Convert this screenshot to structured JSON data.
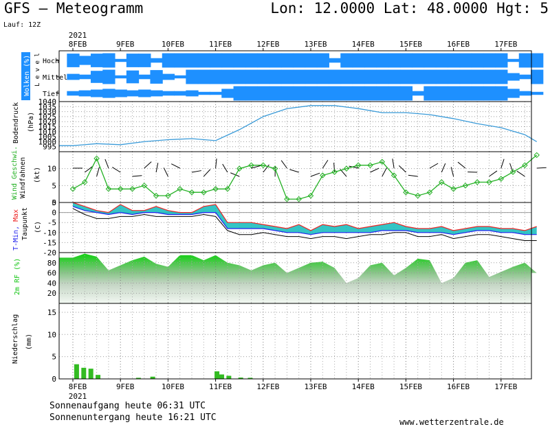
{
  "header": {
    "title": "GFS – Meteogramm",
    "location": "Lon: 12.0000 Lat: 48.0000 Hgt: 5",
    "run": "Lauf: 12Z"
  },
  "year_label": "2021",
  "date_labels": [
    "8FEB",
    "9FEB",
    "10FEB",
    "11FEB",
    "12FEB",
    "13FEB",
    "14FEB",
    "15FEB",
    "16FEB",
    "17FEB"
  ],
  "footer": {
    "sunrise": "Sonnenaufgang heute 06:31 UTC",
    "sunset": "Sonnenuntergang heute 16:21 UTC",
    "website": "www.wetterzentrale.de"
  },
  "colors": {
    "cloud": "#1e90ff",
    "pressure": "#3a9bd9",
    "wind": "#22b022",
    "rh": "#11c411",
    "precip": "#33bb22",
    "tmin": "#2222ee",
    "tmax": "#ee2222",
    "dewpoint": "#000000",
    "temp_fill": "#11bbbb"
  },
  "chart_data": [
    {
      "type": "heatmap",
      "name": "clouds",
      "ylabel_colored": "Wolken (%)",
      "ylabel": "L e v e l",
      "levels": [
        "Hoch",
        "Mittel",
        "Tief"
      ],
      "x_days": [
        0,
        0.25,
        0.5,
        0.75,
        1,
        1.25,
        1.5,
        1.75,
        2,
        2.25,
        2.5,
        2.75,
        3,
        3.25,
        3.5,
        3.75,
        4,
        4.25,
        4.5,
        4.75,
        5,
        5.25,
        5.5,
        5.75,
        6,
        6.25,
        6.5,
        6.75,
        7,
        7.25,
        7.5,
        7.75,
        8,
        8.25,
        8.5,
        8.75,
        9,
        9.25,
        9.5,
        9.75
      ],
      "hoch": [
        90,
        60,
        90,
        95,
        20,
        90,
        90,
        30,
        95,
        95,
        95,
        95,
        95,
        95,
        95,
        95,
        95,
        95,
        95,
        95,
        95,
        95,
        30,
        95,
        95,
        95,
        95,
        95,
        95,
        95,
        95,
        95,
        95,
        95,
        95,
        95,
        95,
        20,
        95,
        95
      ],
      "mittel": [
        40,
        30,
        80,
        95,
        20,
        85,
        30,
        90,
        40,
        20,
        95,
        95,
        95,
        95,
        95,
        95,
        95,
        95,
        95,
        95,
        95,
        95,
        95,
        95,
        95,
        95,
        95,
        95,
        95,
        95,
        95,
        95,
        95,
        95,
        95,
        95,
        95,
        50,
        30,
        95
      ],
      "tief": [
        30,
        40,
        50,
        60,
        50,
        40,
        50,
        40,
        30,
        30,
        40,
        20,
        20,
        60,
        95,
        95,
        95,
        95,
        95,
        95,
        95,
        95,
        95,
        95,
        95,
        95,
        95,
        95,
        95,
        30,
        95,
        95,
        95,
        95,
        95,
        95,
        95,
        60,
        30,
        20
      ]
    },
    {
      "type": "line",
      "name": "pressure",
      "ylabel": "Bodendruck",
      "unit": "(hPa)",
      "ylim": [
        990,
        1040
      ],
      "yticks": [
        995,
        1000,
        1005,
        1010,
        1015,
        1020,
        1025,
        1030,
        1035,
        1040
      ],
      "x_days": [
        0,
        0.5,
        1,
        1.5,
        2,
        2.5,
        3,
        3.5,
        4,
        4.5,
        5,
        5.5,
        6,
        6.5,
        7,
        7.5,
        8,
        8.5,
        9,
        9.5,
        9.75
      ],
      "values": [
        996,
        998,
        997,
        1000,
        1002,
        1003,
        1001,
        1012,
        1025,
        1033,
        1036,
        1036,
        1033,
        1029,
        1029,
        1027,
        1023,
        1018,
        1014,
        1007,
        1000
      ]
    },
    {
      "type": "line",
      "name": "wind",
      "ylabel_colored": "Wind Geschwi.",
      "ylabel": "Windfahnen",
      "unit": "(kt)",
      "ylim": [
        0,
        15
      ],
      "yticks": [
        0,
        5,
        10
      ],
      "x_days": [
        0,
        0.25,
        0.5,
        0.75,
        1,
        1.25,
        1.5,
        1.75,
        2,
        2.25,
        2.5,
        2.75,
        3,
        3.25,
        3.5,
        3.75,
        4,
        4.25,
        4.5,
        4.75,
        5,
        5.25,
        5.5,
        5.75,
        6,
        6.25,
        6.5,
        6.75,
        7,
        7.25,
        7.5,
        7.75,
        8,
        8.25,
        8.5,
        8.75,
        9,
        9.25,
        9.5,
        9.75
      ],
      "values": [
        4,
        6,
        13,
        4,
        4,
        4,
        5,
        2,
        2,
        4,
        3,
        3,
        4,
        4,
        10,
        11,
        11,
        10,
        1,
        1,
        2,
        8,
        9,
        10,
        11,
        11,
        12,
        8,
        3,
        2,
        3,
        6,
        4,
        5,
        6,
        6,
        7,
        9,
        11,
        14
      ]
    },
    {
      "type": "line",
      "name": "temperature",
      "ylabel_tmin": "T-Min,",
      "ylabel_tmax": "Max",
      "ylabel": "Taupunkt",
      "unit": "(C)",
      "ylim": [
        -20,
        5
      ],
      "yticks": [
        5,
        0,
        -5,
        -10,
        -15,
        -20
      ],
      "x_days": [
        0,
        0.25,
        0.5,
        0.75,
        1,
        1.25,
        1.5,
        1.75,
        2,
        2.25,
        2.5,
        2.75,
        3,
        3.25,
        3.5,
        3.75,
        4,
        4.25,
        4.5,
        4.75,
        5,
        5.25,
        5.5,
        5.75,
        6,
        6.25,
        6.5,
        6.75,
        7,
        7.25,
        7.5,
        7.75,
        8,
        8.25,
        8.5,
        8.75,
        9,
        9.25,
        9.5,
        9.75
      ],
      "tmax": [
        5,
        3,
        1,
        0,
        4,
        1,
        1,
        3,
        1,
        0,
        0,
        3,
        4,
        -5,
        -5,
        -5,
        -6,
        -7,
        -8,
        -6,
        -9,
        -6,
        -7,
        -6,
        -8,
        -7,
        -6,
        -5,
        -7,
        -8,
        -8,
        -7,
        -9,
        -8,
        -7,
        -7,
        -8,
        -8,
        -9,
        -7
      ],
      "tmin": [
        3,
        1,
        0,
        -1,
        0,
        -1,
        0,
        0,
        -1,
        -1,
        -1,
        0,
        0,
        -8,
        -8,
        -8,
        -8,
        -9,
        -10,
        -10,
        -11,
        -10,
        -10,
        -10,
        -10,
        -10,
        -9,
        -9,
        -9,
        -10,
        -10,
        -10,
        -11,
        -10,
        -9,
        -9,
        -10,
        -10,
        -11,
        -11
      ],
      "dewpoint": [
        2,
        -1,
        -3,
        -3,
        -2,
        -2,
        -1,
        -2,
        -2,
        -2,
        -2,
        -1,
        -2,
        -9,
        -11,
        -11,
        -10,
        -11,
        -12,
        -12,
        -13,
        -12,
        -12,
        -13,
        -12,
        -11,
        -11,
        -10,
        -10,
        -12,
        -12,
        -11,
        -13,
        -12,
        -11,
        -11,
        -12,
        -13,
        -14,
        -14
      ]
    },
    {
      "type": "area",
      "name": "humidity",
      "ylabel": "2m RF (%)",
      "ylim": [
        0,
        100
      ],
      "yticks": [
        20,
        40,
        60,
        80
      ],
      "x_days": [
        0,
        0.25,
        0.5,
        0.75,
        1,
        1.25,
        1.5,
        1.75,
        2,
        2.25,
        2.5,
        2.75,
        3,
        3.25,
        3.5,
        3.75,
        4,
        4.25,
        4.5,
        4.75,
        5,
        5.25,
        5.5,
        5.75,
        6,
        6.25,
        6.5,
        6.75,
        7,
        7.25,
        7.5,
        7.75,
        8,
        8.25,
        8.5,
        8.75,
        9,
        9.25,
        9.5,
        9.75
      ],
      "values": [
        90,
        98,
        92,
        65,
        75,
        85,
        92,
        78,
        72,
        95,
        95,
        85,
        95,
        80,
        75,
        65,
        75,
        80,
        60,
        70,
        80,
        82,
        70,
        40,
        50,
        75,
        80,
        55,
        70,
        88,
        85,
        40,
        50,
        80,
        85,
        52,
        62,
        72,
        80,
        60
      ]
    },
    {
      "type": "bar",
      "name": "precipitation",
      "ylabel": "Niederschlag",
      "unit": "(mm)",
      "ylim": [
        0,
        17
      ],
      "yticks": [
        0,
        5,
        10,
        15
      ],
      "x_days": [
        0.1,
        0.25,
        0.4,
        0.55,
        1.4,
        1.7,
        3.05,
        3.15,
        3.3,
        3.55,
        3.75
      ],
      "values": [
        3.3,
        2.5,
        2.3,
        0.9,
        0.25,
        0.5,
        1.7,
        1.0,
        0.7,
        0.3,
        0.25
      ]
    }
  ]
}
